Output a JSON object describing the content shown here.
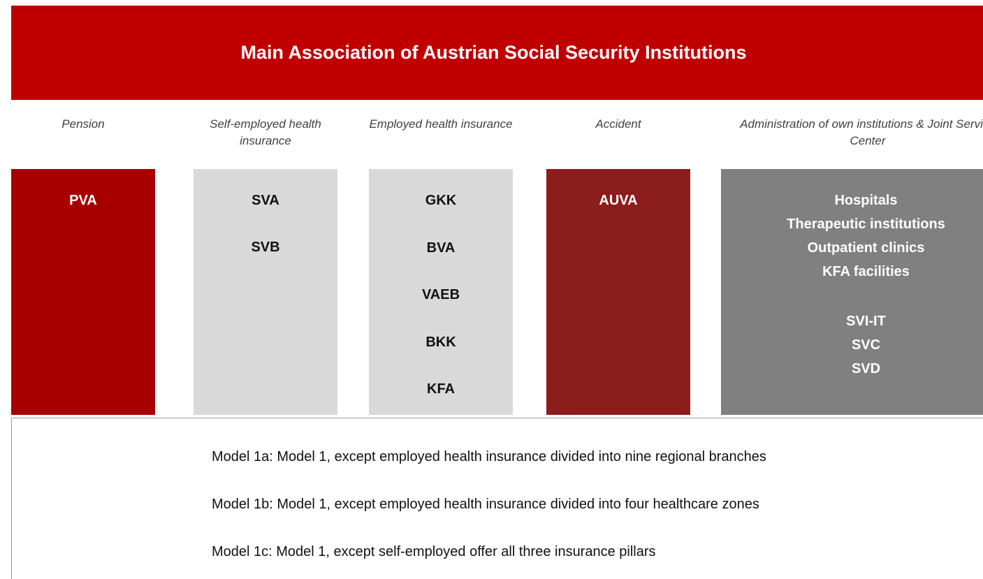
{
  "header": {
    "title": "Main Association of Austrian Social Security Institutions"
  },
  "columns": [
    {
      "heading": "Pension",
      "groups": [
        [
          "PVA"
        ]
      ]
    },
    {
      "heading": "Self-employed health insurance",
      "groups": [
        [
          "SVA",
          "SVB"
        ]
      ]
    },
    {
      "heading": "Employed health insurance",
      "groups": [
        [
          "GKK",
          "BVA",
          "VAEB",
          "BKK",
          "KFA"
        ]
      ]
    },
    {
      "heading": "Accident",
      "groups": [
        [
          "AUVA"
        ]
      ]
    },
    {
      "heading": "Administration of own institutions & Joint Service Center",
      "groups": [
        [
          "Hospitals",
          "Therapeutic institutions",
          "Outpatient clinics",
          "KFA facilities"
        ],
        [
          "SVI-IT",
          "SVC",
          "SVD"
        ]
      ]
    }
  ],
  "models": [
    "Model 1a: Model 1, except employed health insurance divided into nine regional branches",
    "Model 1b: Model 1, except employed health insurance divided into four healthcare zones",
    "Model 1c: Model 1, except self-employed offer all three insurance pillars"
  ]
}
